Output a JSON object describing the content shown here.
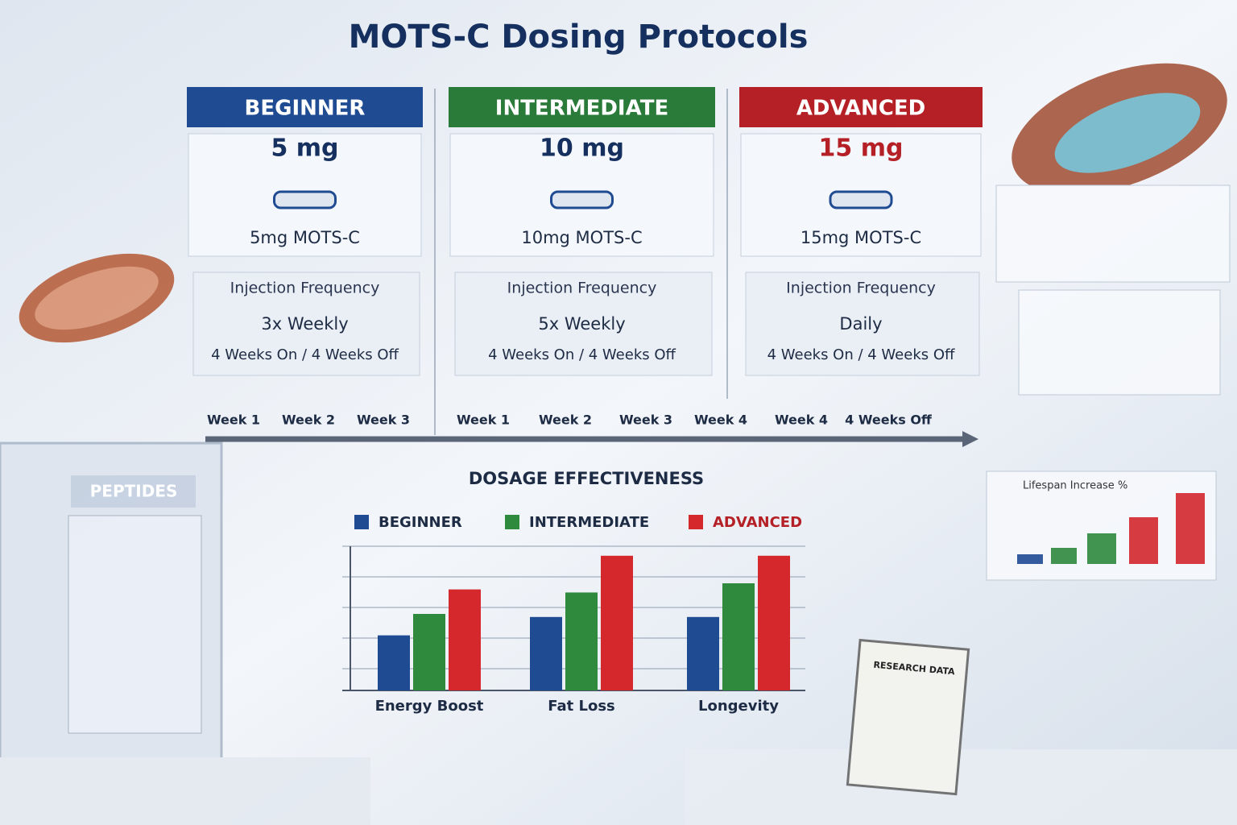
{
  "title": "MOTS-C Dosing Protocols",
  "protocols": [
    {
      "level": "BEGINNER",
      "color": "#1f4b93",
      "dose": "5 mg",
      "product": "5mg MOTS-C",
      "frequency_label": "Injection Frequency",
      "frequency": "3x Weekly",
      "cycle": "4 Weeks On / 4 Weeks Off"
    },
    {
      "level": "INTERMEDIATE",
      "color": "#2a7a3a",
      "dose": "10 mg",
      "product": "10mg MOTS-C",
      "frequency_label": "Injection Frequency",
      "frequency": "5x Weekly",
      "cycle": "4 Weeks On / 4 Weeks Off"
    },
    {
      "level": "ADVANCED",
      "color": "#b42026",
      "dose": "15 mg",
      "product": "15mg MOTS-C",
      "frequency_label": "Injection Frequency",
      "frequency": "Daily",
      "cycle": "4 Weeks On / 4 Weeks Off"
    }
  ],
  "timeline": [
    "Week 1",
    "Week 2",
    "Week 3",
    "Week 1",
    "Week 2",
    "Week 3",
    "Week 4",
    "Week 4",
    "4 Weeks Off"
  ],
  "labels": {
    "fridge": "PEPTIDES",
    "clipboard": "RESEARCH DATA",
    "side_chart": "Lifespan Increase %"
  },
  "chart_data": {
    "type": "bar",
    "title": "DOSAGE EFFECTIVENESS",
    "categories": [
      "Energy Boost",
      "Fat Loss",
      "Longevity"
    ],
    "series": [
      {
        "name": "BEGINNER",
        "color": "#1f4b93",
        "values": [
          1.8,
          2.4,
          2.4
        ]
      },
      {
        "name": "INTERMEDIATE",
        "color": "#2f8a3e",
        "values": [
          2.5,
          3.2,
          3.5
        ]
      },
      {
        "name": "ADVANCED",
        "color": "#d4282c",
        "values": [
          3.3,
          4.4,
          4.4
        ]
      }
    ],
    "ylim": [
      0,
      5
    ]
  }
}
